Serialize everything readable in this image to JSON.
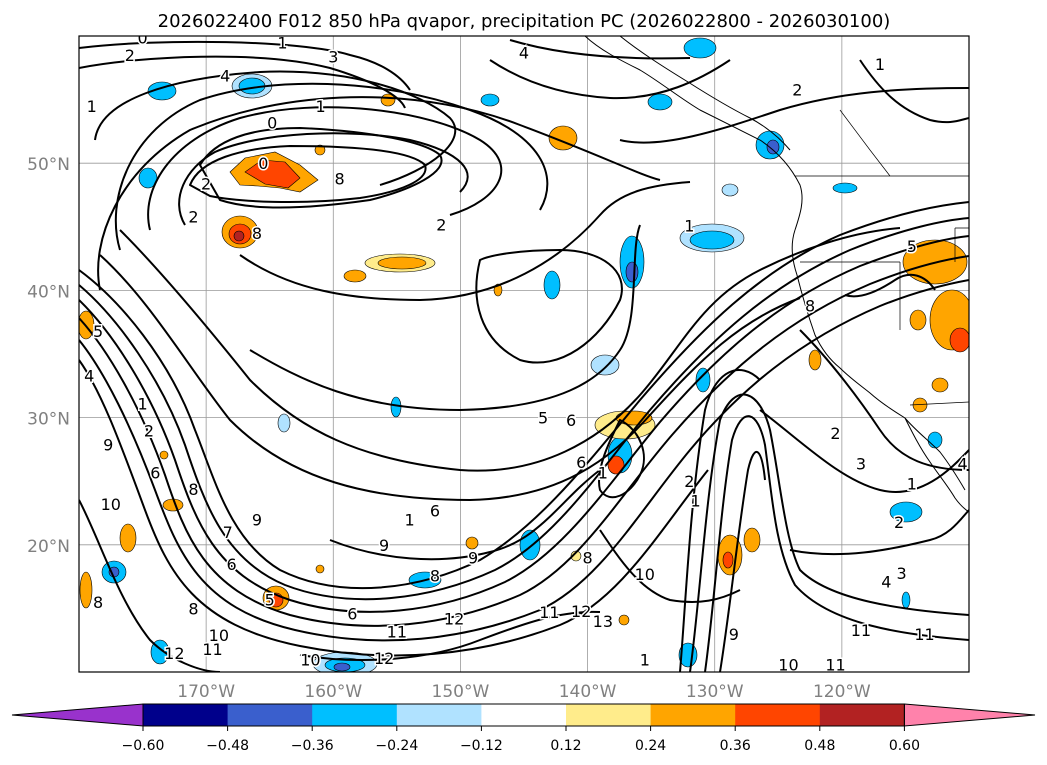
{
  "title": "2026022400 F012 850 hPa qvapor, precipitation PC (2026022800 - 2026030100)",
  "lat_labels": [
    {
      "text": "50°N",
      "lat": 50
    },
    {
      "text": "40°N",
      "lat": 40
    },
    {
      "text": "30°N",
      "lat": 30
    },
    {
      "text": "20°N",
      "lat": 20
    }
  ],
  "lon_labels": [
    {
      "text": "170°W",
      "lon": -170
    },
    {
      "text": "160°W",
      "lon": -160
    },
    {
      "text": "150°W",
      "lon": -150
    },
    {
      "text": "140°W",
      "lon": -140
    },
    {
      "text": "130°W",
      "lon": -130
    },
    {
      "text": "120°W",
      "lon": -120
    }
  ],
  "extent": {
    "lon_min": -180,
    "lon_max": -110,
    "lat_min": 10,
    "lat_max": 60
  },
  "colorbar": {
    "colors": [
      "#9932cc",
      "#00008b",
      "#3a5fcd",
      "#00bfff",
      "#b0e2ff",
      "#ffffff",
      "#ffec8b",
      "#ffa500",
      "#ff4500",
      "#b22222",
      "#ff82ab"
    ],
    "ticks": [
      "−0.60",
      "−0.48",
      "−0.36",
      "−0.24",
      "−0.12",
      "0.12",
      "0.24",
      "0.36",
      "0.48",
      "0.60"
    ]
  },
  "contour_labels": [
    {
      "t": "0",
      "lon": -175.0,
      "lat": 59.9
    },
    {
      "t": "1",
      "lon": -164.0,
      "lat": 59.5
    },
    {
      "t": "2",
      "lon": -176.0,
      "lat": 58.5
    },
    {
      "t": "3",
      "lon": -160.0,
      "lat": 58.4
    },
    {
      "t": "4",
      "lon": -145.0,
      "lat": 58.7
    },
    {
      "t": "4",
      "lon": -168.5,
      "lat": 56.9
    },
    {
      "t": "2",
      "lon": -123.5,
      "lat": 55.8
    },
    {
      "t": "1",
      "lon": -117.0,
      "lat": 57.8
    },
    {
      "t": "1",
      "lon": -179.0,
      "lat": 54.5
    },
    {
      "t": "1",
      "lon": -161.0,
      "lat": 54.5
    },
    {
      "t": "0",
      "lon": -164.8,
      "lat": 53.2
    },
    {
      "t": "0",
      "lon": -165.5,
      "lat": 50.0
    },
    {
      "t": "2",
      "lon": -170.0,
      "lat": 48.4
    },
    {
      "t": "8",
      "lon": -159.5,
      "lat": 48.8
    },
    {
      "t": "2",
      "lon": -171.0,
      "lat": 45.8
    },
    {
      "t": "8",
      "lon": -166.0,
      "lat": 44.5
    },
    {
      "t": "2",
      "lon": -151.5,
      "lat": 45.2
    },
    {
      "t": "5",
      "lon": -114.5,
      "lat": 43.5
    },
    {
      "t": "1",
      "lon": -132.0,
      "lat": 45.1
    },
    {
      "t": "8",
      "lon": -122.5,
      "lat": 38.8
    },
    {
      "t": "5",
      "lon": -178.5,
      "lat": 36.8
    },
    {
      "t": "4",
      "lon": -179.2,
      "lat": 33.3
    },
    {
      "t": "1",
      "lon": -175.0,
      "lat": 31.1
    },
    {
      "t": "2",
      "lon": -174.5,
      "lat": 29.0
    },
    {
      "t": "9",
      "lon": -177.7,
      "lat": 27.9
    },
    {
      "t": "6",
      "lon": -174.0,
      "lat": 25.7
    },
    {
      "t": "8",
      "lon": -171.0,
      "lat": 24.4
    },
    {
      "t": "9",
      "lon": -166.0,
      "lat": 22.0
    },
    {
      "t": "10",
      "lon": -177.5,
      "lat": 23.2
    },
    {
      "t": "7",
      "lon": -168.3,
      "lat": 21.0
    },
    {
      "t": "6",
      "lon": -168.0,
      "lat": 18.5
    },
    {
      "t": "1",
      "lon": -154.0,
      "lat": 22.0
    },
    {
      "t": "9",
      "lon": -156.0,
      "lat": 20.0
    },
    {
      "t": "6",
      "lon": -152.0,
      "lat": 22.7
    },
    {
      "t": "5",
      "lon": -143.5,
      "lat": 30.0
    },
    {
      "t": "6",
      "lon": -141.3,
      "lat": 29.8
    },
    {
      "t": "6",
      "lon": -140.5,
      "lat": 26.5
    },
    {
      "t": "1",
      "lon": -138.8,
      "lat": 25.7
    },
    {
      "t": "2",
      "lon": -132.0,
      "lat": 25.0
    },
    {
      "t": "1",
      "lon": -131.5,
      "lat": 23.5
    },
    {
      "t": "1",
      "lon": -114.5,
      "lat": 24.8
    },
    {
      "t": "2",
      "lon": -115.5,
      "lat": 21.8
    },
    {
      "t": "2",
      "lon": -120.5,
      "lat": 28.8
    },
    {
      "t": "3",
      "lon": -118.5,
      "lat": 26.4
    },
    {
      "t": "4",
      "lon": -110.5,
      "lat": 26.4
    },
    {
      "t": "9",
      "lon": -149.0,
      "lat": 19.0
    },
    {
      "t": "8",
      "lon": -152.0,
      "lat": 17.6
    },
    {
      "t": "8",
      "lon": -140.0,
      "lat": 19.0
    },
    {
      "t": "10",
      "lon": -135.5,
      "lat": 17.7
    },
    {
      "t": "3",
      "lon": -115.3,
      "lat": 17.8
    },
    {
      "t": "4",
      "lon": -116.5,
      "lat": 17.1
    },
    {
      "t": "8",
      "lon": -178.5,
      "lat": 15.5
    },
    {
      "t": "8",
      "lon": -171.0,
      "lat": 15.0
    },
    {
      "t": "5",
      "lon": -165.0,
      "lat": 15.7
    },
    {
      "t": "6",
      "lon": -158.5,
      "lat": 14.6
    },
    {
      "t": "11",
      "lon": -155.0,
      "lat": 13.2
    },
    {
      "t": "12",
      "lon": -150.5,
      "lat": 14.2
    },
    {
      "t": "11",
      "lon": -143.0,
      "lat": 14.7
    },
    {
      "t": "12",
      "lon": -140.5,
      "lat": 14.8
    },
    {
      "t": "13",
      "lon": -138.8,
      "lat": 14.0
    },
    {
      "t": "10",
      "lon": -169.0,
      "lat": 12.9
    },
    {
      "t": "11",
      "lon": -169.5,
      "lat": 11.8
    },
    {
      "t": "12",
      "lon": -172.5,
      "lat": 11.5
    },
    {
      "t": "9",
      "lon": -128.5,
      "lat": 13.0
    },
    {
      "t": "11",
      "lon": -118.5,
      "lat": 13.3
    },
    {
      "t": "11",
      "lon": -113.5,
      "lat": 13.0
    },
    {
      "t": "10",
      "lon": -124.2,
      "lat": 10.6
    },
    {
      "t": "11",
      "lon": -120.5,
      "lat": 10.6
    },
    {
      "t": "10",
      "lon": -161.8,
      "lat": 11.0
    },
    {
      "t": "12",
      "lon": -156.0,
      "lat": 11.1
    },
    {
      "t": "1",
      "lon": -135.5,
      "lat": 11.0
    }
  ]
}
